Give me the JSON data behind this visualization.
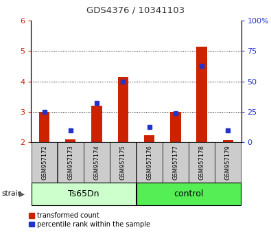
{
  "title": "GDS4376 / 10341103",
  "samples": [
    "GSM957172",
    "GSM957173",
    "GSM957174",
    "GSM957175",
    "GSM957176",
    "GSM957177",
    "GSM957178",
    "GSM957179"
  ],
  "red_values": [
    3.0,
    2.1,
    3.2,
    4.15,
    2.22,
    3.0,
    5.15,
    2.07
  ],
  "blue_values": [
    3.0,
    2.38,
    3.28,
    4.0,
    2.5,
    2.95,
    4.5,
    2.38
  ],
  "baseline": 2.0,
  "ylim": [
    2,
    6
  ],
  "yticks_left": [
    2,
    3,
    4,
    5,
    6
  ],
  "yticks_right": [
    0,
    25,
    50,
    75,
    100
  ],
  "right_ylim": [
    0,
    100
  ],
  "group1_label": "Ts65Dn",
  "group2_label": "control",
  "bar_color": "#cc2200",
  "dot_color": "#2233cc",
  "group1_bg": "#ccffcc",
  "group2_bg": "#55ee55",
  "tick_bg": "#cccccc",
  "title_color": "#333333",
  "left_tick_color": "#cc2200",
  "right_tick_color": "#2233cc",
  "legend_red": "transformed count",
  "legend_blue": "percentile rank within the sample",
  "bar_width": 0.4
}
